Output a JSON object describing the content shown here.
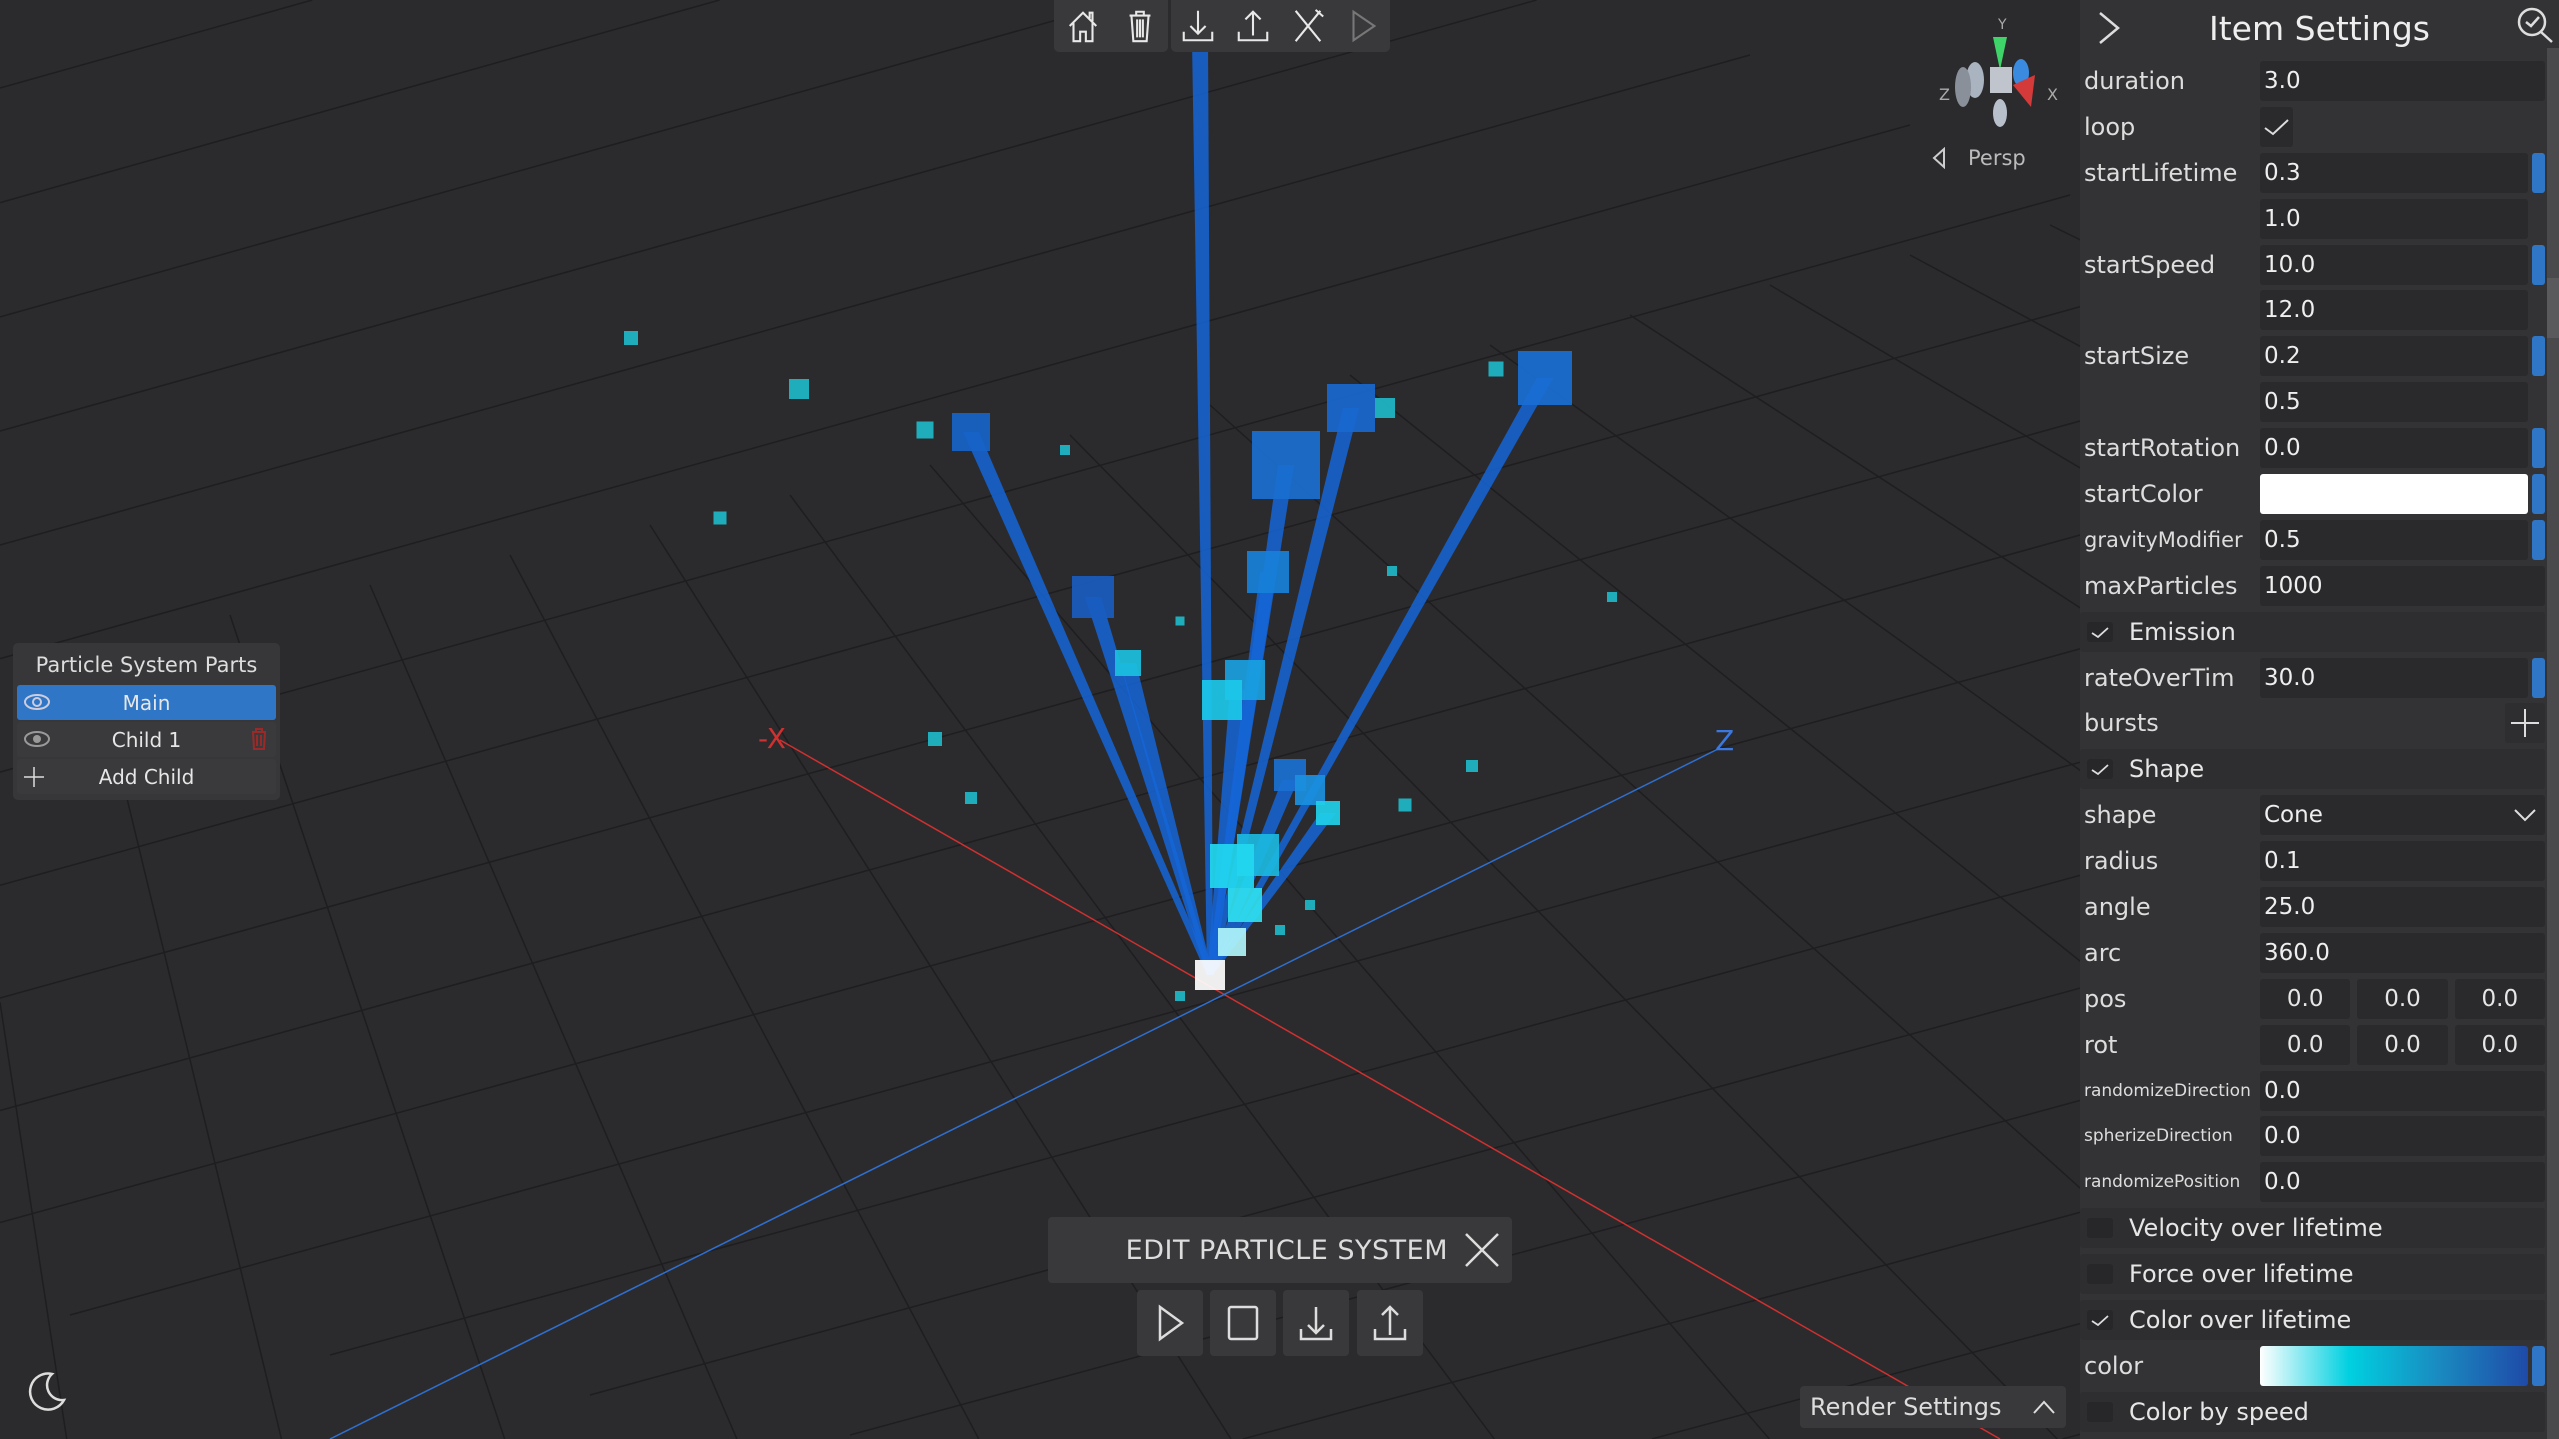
{
  "toolbar": {
    "buttons": [
      {
        "icon": "home-icon"
      },
      {
        "icon": "trash-icon"
      },
      {
        "icon": "download-icon"
      },
      {
        "icon": "upload-icon"
      },
      {
        "icon": "tools-icon"
      },
      {
        "icon": "play-icon"
      }
    ]
  },
  "gizmo": {
    "axes": {
      "y": "Y",
      "x": "X",
      "z": "Z"
    },
    "projection": "Persp"
  },
  "viewport": {
    "axis_labels": {
      "neg_x": "-X",
      "z": "Z"
    },
    "colors": {
      "x_axis": "#d03030",
      "z_axis": "#2f6fd0",
      "particle": "#1fc7d6",
      "streak": "#1565d8"
    }
  },
  "parts_panel": {
    "title": "Particle System Parts",
    "items": [
      {
        "label": "Main",
        "selected": true
      },
      {
        "label": "Child 1",
        "selected": false
      }
    ],
    "add_label": "Add Child"
  },
  "edit_bar": {
    "title": "EDIT PARTICLE SYSTEM"
  },
  "render_settings": {
    "label": "Render Settings"
  },
  "item_settings": {
    "title": "Item Settings",
    "duration": {
      "label": "duration",
      "value": "3.0"
    },
    "loop": {
      "label": "loop",
      "checked": true
    },
    "startLifetime": {
      "label": "startLifetime",
      "min": "0.3",
      "max": "1.0"
    },
    "startSpeed": {
      "label": "startSpeed",
      "min": "10.0",
      "max": "12.0"
    },
    "startSize": {
      "label": "startSize",
      "min": "0.2",
      "max": "0.5"
    },
    "startRotation": {
      "label": "startRotation",
      "value": "0.0"
    },
    "startColor": {
      "label": "startColor",
      "value": "#ffffff"
    },
    "gravityModifier": {
      "label": "gravityModifier",
      "value": "0.5"
    },
    "maxParticles": {
      "label": "maxParticles",
      "value": "1000"
    },
    "emission": {
      "label": "Emission",
      "checked": true
    },
    "rateOverTime": {
      "label": "rateOverTim",
      "value": "30.0"
    },
    "bursts": {
      "label": "bursts"
    },
    "shape_section": {
      "label": "Shape",
      "checked": true
    },
    "shape": {
      "label": "shape",
      "value": "Cone"
    },
    "radius": {
      "label": "radius",
      "value": "0.1"
    },
    "angle": {
      "label": "angle",
      "value": "25.0"
    },
    "arc": {
      "label": "arc",
      "value": "360.0"
    },
    "pos": {
      "label": "pos",
      "x": "0.0",
      "y": "0.0",
      "z": "0.0"
    },
    "rot": {
      "label": "rot",
      "x": "0.0",
      "y": "0.0",
      "z": "0.0"
    },
    "randomizeDirection": {
      "label": "randomizeDirection",
      "value": "0.0"
    },
    "spherizeDirection": {
      "label": "spherizeDirection",
      "value": "0.0"
    },
    "randomizePosition": {
      "label": "randomizePosition",
      "value": "0.0"
    },
    "velocity": {
      "label": "Velocity over lifetime",
      "checked": false
    },
    "force": {
      "label": "Force over lifetime",
      "checked": false
    },
    "colorOverLifetime": {
      "label": "Color over lifetime",
      "checked": true
    },
    "color": {
      "label": "color",
      "gradient": [
        "#ffffff",
        "#00d0e0",
        "#1a8ac0",
        "#1f4aa8"
      ]
    },
    "colorBySpeed": {
      "label": "Color by speed",
      "checked": false
    }
  }
}
